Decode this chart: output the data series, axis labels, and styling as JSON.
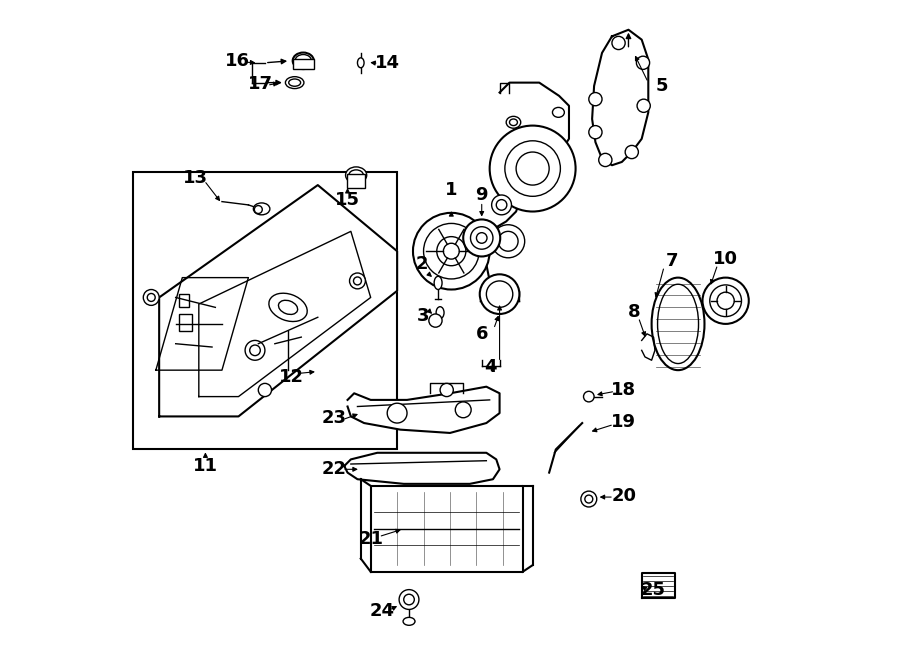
{
  "bg_color": "#ffffff",
  "line_color": "#000000",
  "label_fontsize": 13,
  "figsize": [
    9.0,
    6.61
  ],
  "dpi": 100
}
